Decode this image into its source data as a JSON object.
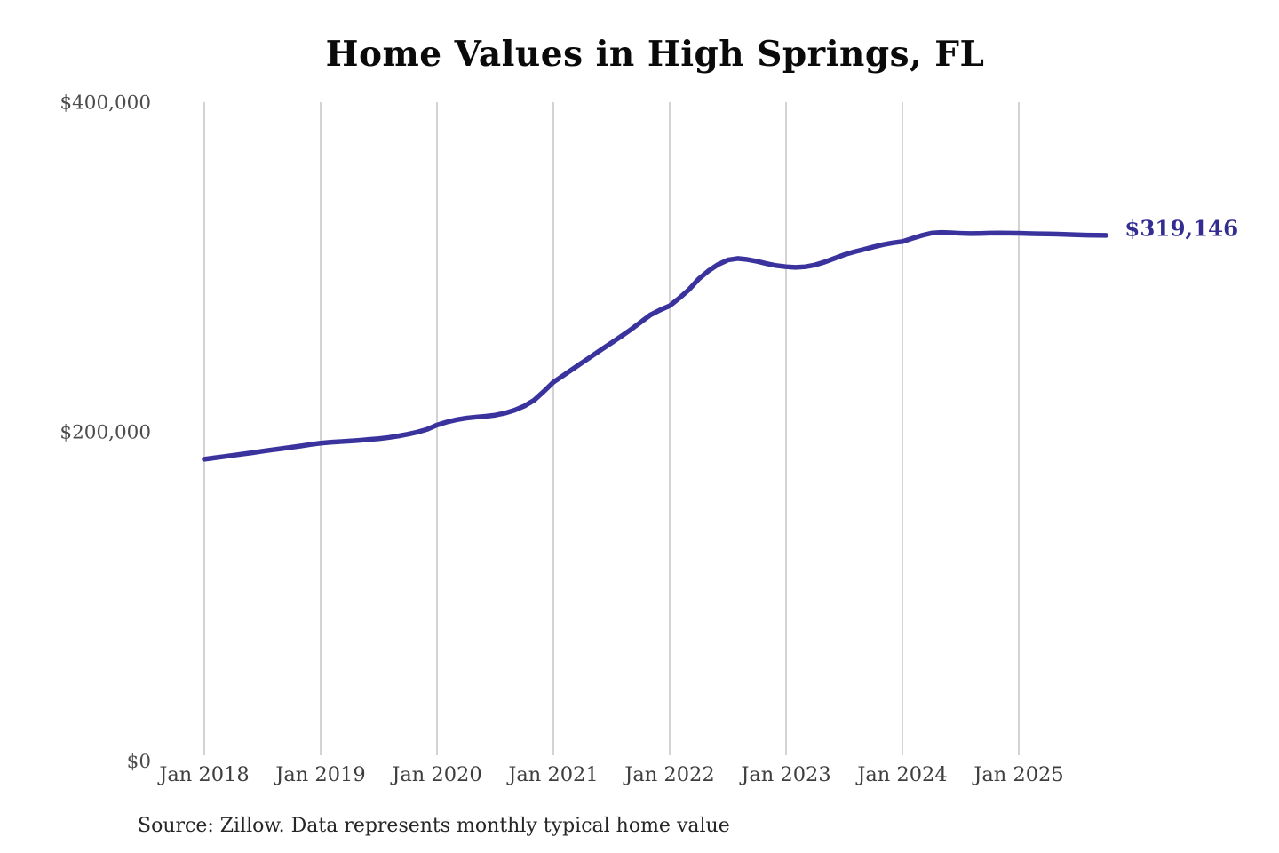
{
  "header": {
    "title": "Home Values in High Springs, FL"
  },
  "footer": {
    "source_note": "Source: Zillow. Data represents monthly typical home value"
  },
  "colors": {
    "line": "#3a339e",
    "latest_label": "#332d92",
    "gridline": "#c8c8c8",
    "background": "#ffffff"
  },
  "chart_data": {
    "type": "line",
    "title": "Home Values in High Springs, FL",
    "ylabel": "",
    "xlabel": "",
    "unit": "USD",
    "frequency": "monthly",
    "x_start": "Jan 2018",
    "x_end": "Oct 2025",
    "ylim": [
      0,
      400000
    ],
    "grid": "vertical-only",
    "legend_position": "none",
    "x_tick_labels": [
      "Jan 2018",
      "Jan 2019",
      "Jan 2020",
      "Jan 2021",
      "Jan 2022",
      "Jan 2023",
      "Jan 2024",
      "Jan 2025"
    ],
    "x_tick_month_indices": [
      0,
      12,
      24,
      36,
      48,
      60,
      72,
      84
    ],
    "y_tick_labels": [
      "$0",
      "$200,000",
      "$400,000"
    ],
    "y_tick_values": [
      0,
      200000,
      400000
    ],
    "latest_value": 319146,
    "latest_value_label": "$319,146",
    "series": [
      {
        "name": "Monthly typical home value",
        "values": [
          183200,
          184000,
          184800,
          185600,
          186400,
          187200,
          188100,
          188900,
          189700,
          190500,
          191300,
          192200,
          193000,
          193500,
          193900,
          194300,
          194700,
          195200,
          195700,
          196400,
          197300,
          198400,
          199700,
          201400,
          204000,
          205800,
          207200,
          208200,
          208800,
          209300,
          210000,
          211200,
          213000,
          215500,
          219000,
          224300,
          230000,
          234000,
          238000,
          242000,
          246000,
          250000,
          253900,
          257900,
          262000,
          266400,
          270800,
          273800,
          276400,
          281100,
          286300,
          292700,
          297600,
          301500,
          304200,
          305100,
          304500,
          303400,
          302000,
          300800,
          300100,
          299700,
          300100,
          301200,
          303000,
          305200,
          307400,
          309100,
          310600,
          312100,
          313500,
          314600,
          315400,
          317300,
          319100,
          320500,
          320900,
          320700,
          320400,
          320200,
          320300,
          320500,
          320600,
          320500,
          320400,
          320200,
          320100,
          320000,
          319900,
          319700,
          319500,
          319300,
          319200,
          319146
        ]
      }
    ]
  }
}
